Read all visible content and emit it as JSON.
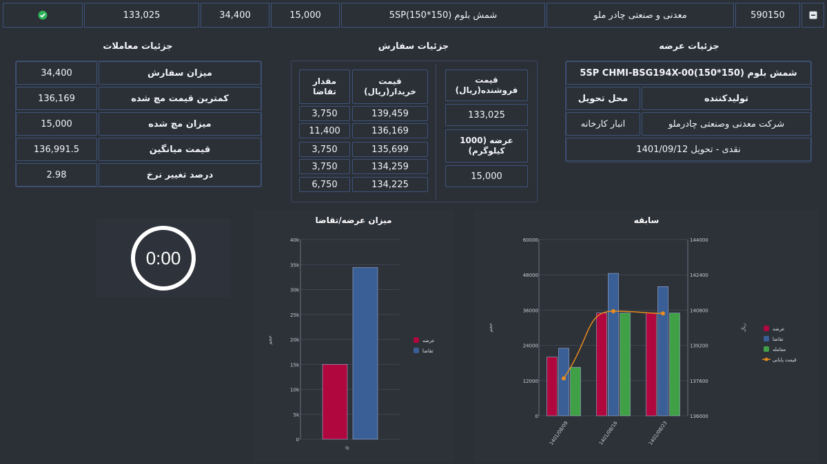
{
  "top_row": {
    "status_icon": "check-circle-icon",
    "values": [
      "133,025",
      "34,400",
      "15,000"
    ],
    "product": "شمش بلوم (150*150)5SP",
    "company": "معدنی و صنعتی چادر ملو",
    "code": "590150",
    "collapse_icon": "minus-square-icon"
  },
  "trade_details": {
    "title": "جزئیات معاملات",
    "rows": [
      {
        "label": "میزان سفارش",
        "value": "34,400"
      },
      {
        "label": "کمترین قیمت مچ شده",
        "value": "136,169"
      },
      {
        "label": "میزان مچ شده",
        "value": "15,000"
      },
      {
        "label": "قیمت میانگین",
        "value": "136,991.5"
      },
      {
        "label": "درصد تغییر نرخ",
        "value": "2.98"
      }
    ]
  },
  "order_details": {
    "title": "جزئیات سفارش",
    "header_qty": "مقدار تقاضا",
    "header_buy_price": "قیمت خریدار(ریال)",
    "header_sell_price": "قیمت فروشنده(ریال)",
    "sell_price": "133,025",
    "supply_label": "عرضه (1000 کیلوگرم)",
    "supply_value": "15,000",
    "rows": [
      {
        "qty": "3,750",
        "price": "139,459"
      },
      {
        "qty": "11,400",
        "price": "136,169"
      },
      {
        "qty": "3,750",
        "price": "135,699"
      },
      {
        "qty": "3,750",
        "price": "134,259"
      },
      {
        "qty": "6,750",
        "price": "134,225"
      }
    ]
  },
  "supply_details": {
    "title": "جزئیات عرضه",
    "product": "شمش بلوم (150*150)5SP CHMI-BSG194X-00",
    "producer_header": "تولیدکننده",
    "location_header": "محل تحویل",
    "producer": "شرکت معدنی وصنعتی چادرملو",
    "location": "انبار کارخانه",
    "terms": "نقدی - تحویل 1401/09/12"
  },
  "timer": {
    "value": "0:00"
  },
  "supply_demand_chart": {
    "title": "میزان عرضه/تقاضا",
    "y_axis_title": "حجم",
    "legend_supply": "عرضه",
    "legend_demand": "تقاضا",
    "color_supply": "#b0073e",
    "color_demand": "#3a5e96"
  },
  "history_chart": {
    "title": "سابقه",
    "y_left_title": "حجم",
    "y_right_title": "ریال",
    "legend_supply": "عرضه",
    "legend_demand": "تقاضا",
    "legend_traded": "معامله",
    "legend_final_price": "قیمت پایانی",
    "color_supply": "#b0073e",
    "color_demand": "#3a5e96",
    "color_traded": "#3fa046",
    "color_price": "#e98c1c"
  },
  "chart_data": [
    {
      "type": "bar",
      "title": "میزان عرضه/تقاضا",
      "ylabel": "حجم",
      "categories": [
        "0"
      ],
      "y_ticks": [
        "0",
        "5k",
        "10k",
        "15k",
        "20k",
        "25k",
        "30k",
        "35k",
        "40k"
      ],
      "ylim": [
        0,
        40000
      ],
      "series": [
        {
          "name": "عرضه",
          "values": [
            15000
          ]
        },
        {
          "name": "تقاضا",
          "values": [
            34400
          ]
        }
      ],
      "legend": "right"
    },
    {
      "type": "bar",
      "title": "سابقه",
      "ylabel": "حجم",
      "y2label": "ریال",
      "categories": [
        "1401/08/09",
        "1401/08/16",
        "1401/08/23"
      ],
      "ylim": [
        0,
        60000
      ],
      "y_ticks": [
        "0",
        "12000",
        "24000",
        "36000",
        "48000",
        "60000"
      ],
      "y2lim": [
        136000,
        144000
      ],
      "y2_ticks": [
        "136000",
        "137600",
        "139200",
        "140800",
        "142400",
        "144000"
      ],
      "series": [
        {
          "name": "عرضه",
          "values": [
            20000,
            35000,
            35000
          ]
        },
        {
          "name": "تقاضا",
          "values": [
            23000,
            48500,
            44000
          ]
        },
        {
          "name": "معامله",
          "values": [
            16500,
            35000,
            35000
          ]
        },
        {
          "name": "قیمت پایانی",
          "type": "line",
          "axis": "right",
          "values": [
            137700,
            140750,
            140650
          ]
        }
      ],
      "legend": "right"
    }
  ]
}
